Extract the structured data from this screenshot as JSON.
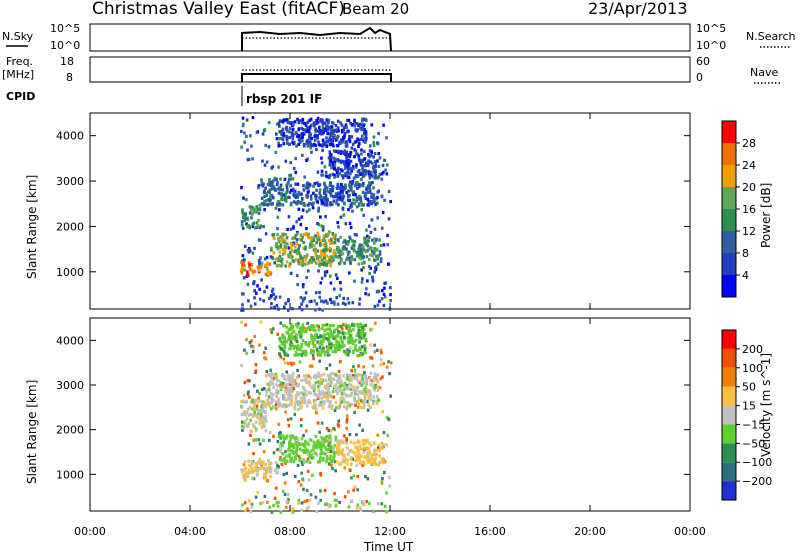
{
  "header": {
    "station": "Christmas Valley East (fitACF)",
    "beam": "Beam 20",
    "date": "23/Apr/2013"
  },
  "sky_panel": {
    "left_label": "N.Sky",
    "left_ticks": [
      "10^5",
      "10^0"
    ],
    "right_ticks": [
      "10^5",
      "10^0"
    ],
    "right_label": "N.Search"
  },
  "freq_panel": {
    "left_label_top": "Freq.",
    "left_label_bottom": "[MHz]",
    "left_ticks": [
      "18",
      "8"
    ],
    "right_ticks": [
      "60",
      "0"
    ],
    "right_label": "Nave"
  },
  "cpid": {
    "label": "CPID",
    "value": "rbsp 201 IF"
  },
  "chart_data": [
    {
      "type": "heatmap",
      "name": "power",
      "ylabel": "Slant Range [km]",
      "xlabel": "Time UT",
      "x_ticks": [
        "00:00",
        "04:00",
        "08:00",
        "12:00",
        "16:00",
        "20:00",
        "00:00"
      ],
      "xlim_hours": [
        0,
        24
      ],
      "y_ticks": [
        "1000",
        "2000",
        "3000",
        "4000"
      ],
      "ylim": [
        180,
        4500
      ],
      "data_extent_hours": [
        6.0,
        12.0
      ],
      "colorbar": {
        "label": "Power [dB]",
        "ticks": [
          "28",
          "24",
          "20",
          "16",
          "12",
          "8",
          "4"
        ],
        "range": [
          0,
          32
        ],
        "colors": [
          "#0000ff",
          "#2040c0",
          "#3060a0",
          "#2f8f50",
          "#5fa85a",
          "#f0a000",
          "#f07000",
          "#ff0000"
        ]
      },
      "echo_bands": [
        {
          "t0": 6.0,
          "t1": 7.2,
          "r0": 950,
          "r1": 1250,
          "level": 24
        },
        {
          "t0": 7.2,
          "t1": 9.8,
          "r0": 1150,
          "r1": 1900,
          "level": 18
        },
        {
          "t0": 9.8,
          "t1": 11.6,
          "r0": 1200,
          "r1": 1800,
          "level": 14
        },
        {
          "t0": 6.0,
          "t1": 6.8,
          "r0": 2000,
          "r1": 2500,
          "level": 14
        },
        {
          "t0": 6.8,
          "t1": 8.0,
          "r0": 2500,
          "r1": 3100,
          "level": 10
        },
        {
          "t0": 8.0,
          "t1": 11.5,
          "r0": 2500,
          "r1": 3000,
          "level": 8
        },
        {
          "t0": 9.5,
          "t1": 11.5,
          "r0": 3100,
          "r1": 3700,
          "level": 6
        },
        {
          "t0": 7.5,
          "t1": 11.0,
          "r0": 3800,
          "r1": 4400,
          "level": 5
        }
      ]
    },
    {
      "type": "heatmap",
      "name": "velocity",
      "ylabel": "Slant Range [km]",
      "xlabel": "Time UT",
      "x_ticks": [
        "00:00",
        "04:00",
        "08:00",
        "12:00",
        "16:00",
        "20:00",
        "00:00"
      ],
      "xlim_hours": [
        0,
        24
      ],
      "y_ticks": [
        "1000",
        "2000",
        "3000",
        "4000"
      ],
      "ylim": [
        180,
        4500
      ],
      "data_extent_hours": [
        6.0,
        12.0
      ],
      "colorbar": {
        "label": "Velocity [m s^-1]",
        "ticks": [
          "200",
          "100",
          "50",
          "15",
          "-15",
          "-50",
          "-100",
          "-200"
        ],
        "colors": [
          "#2030d0",
          "#2f6f7f",
          "#2f8f50",
          "#60d030",
          "#c0c0c0",
          "#f8c040",
          "#f08000",
          "#f05000",
          "#ff0000"
        ]
      },
      "echo_bands": [
        {
          "t0": 6.0,
          "t1": 7.5,
          "r0": 950,
          "r1": 1350,
          "level": 15
        },
        {
          "t0": 7.5,
          "t1": 9.8,
          "r0": 1300,
          "r1": 1900,
          "level": -30
        },
        {
          "t0": 9.8,
          "t1": 11.7,
          "r0": 1250,
          "r1": 1800,
          "level": 30
        },
        {
          "t0": 6.0,
          "t1": 7.0,
          "r0": 2000,
          "r1": 2700,
          "level": 0
        },
        {
          "t0": 7.0,
          "t1": 11.5,
          "r0": 2500,
          "r1": 3300,
          "level": 0
        },
        {
          "t0": 7.5,
          "t1": 11.0,
          "r0": 3700,
          "r1": 4400,
          "level": -40
        }
      ]
    }
  ]
}
